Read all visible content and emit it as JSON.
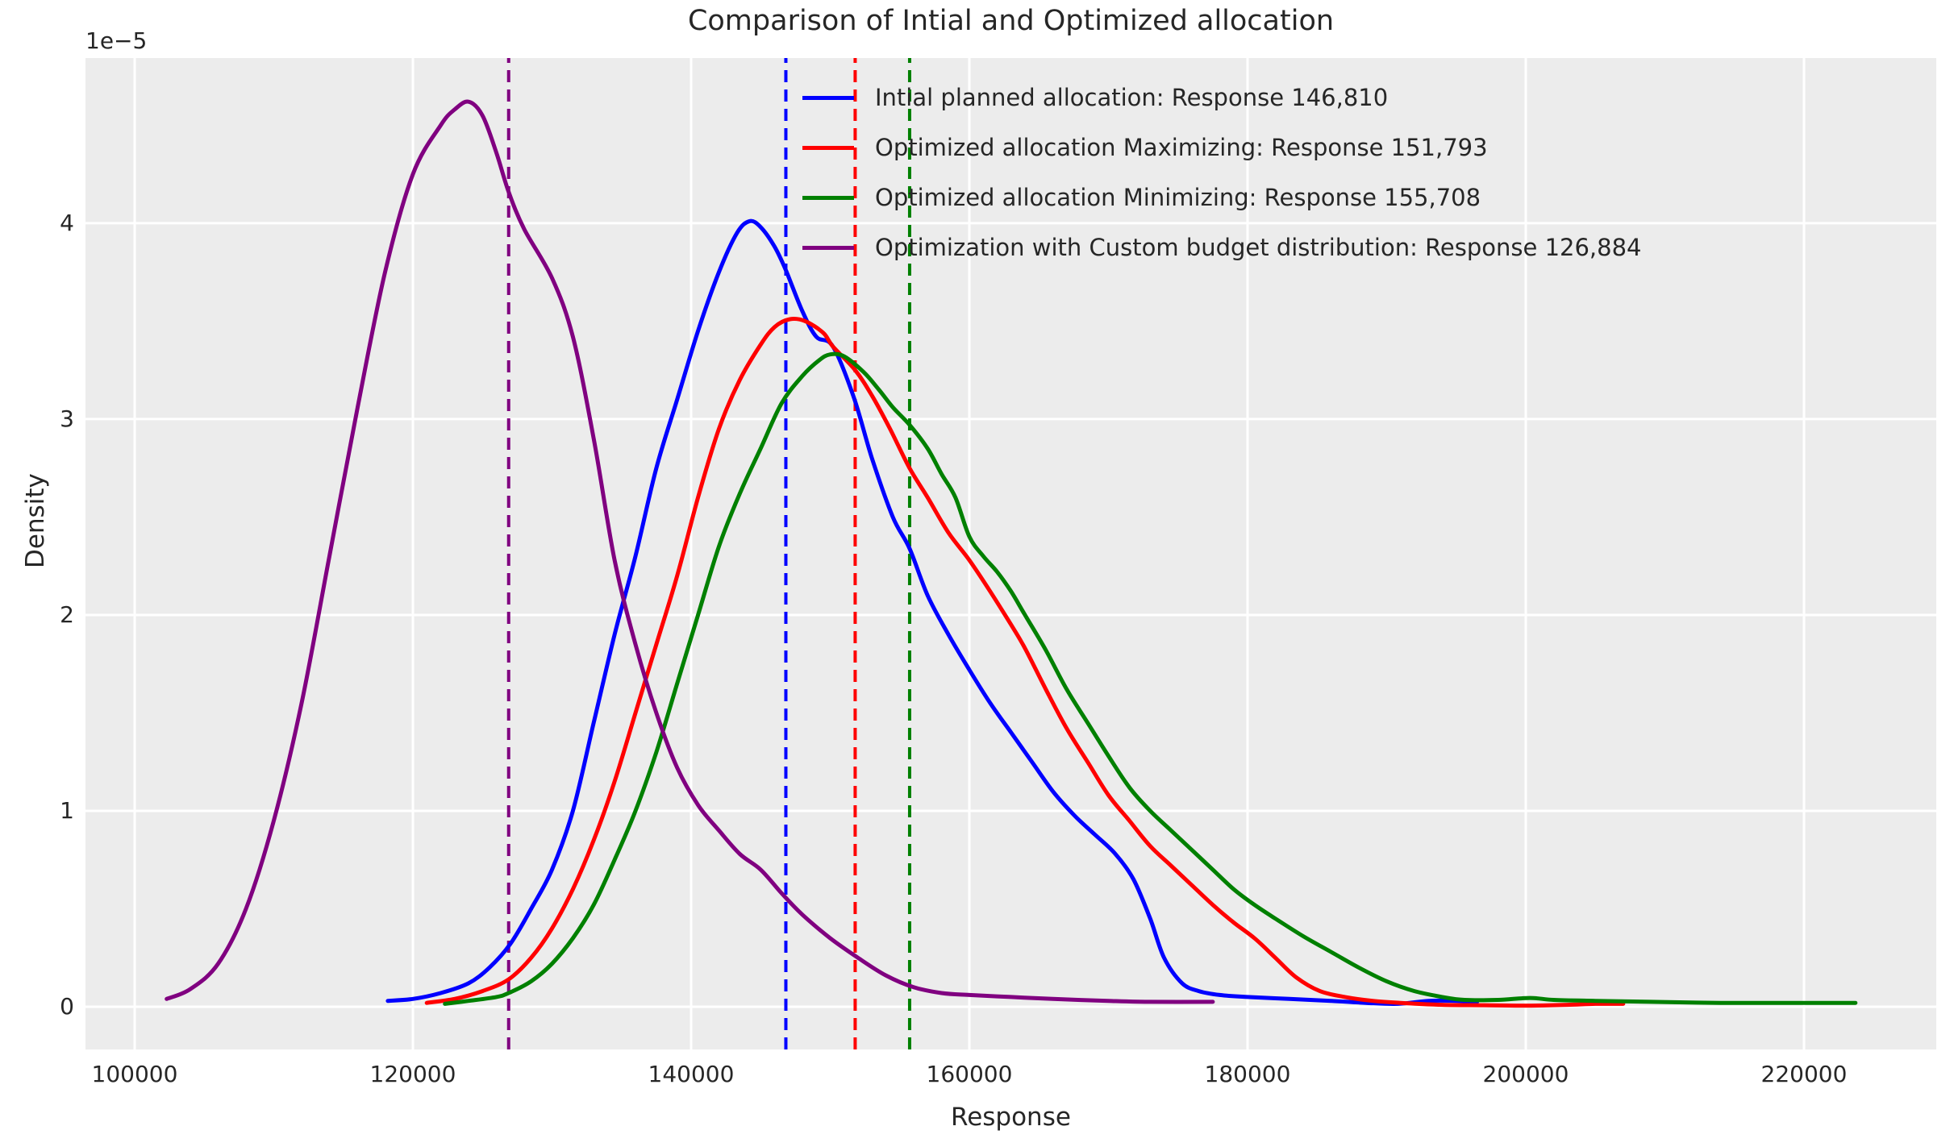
{
  "title": "Comparison of Intial and Optimized allocation",
  "axes": {
    "xlabel": "Response",
    "ylabel": "Density",
    "offset_label": "1e−5",
    "x_ticks": [
      100000,
      120000,
      140000,
      160000,
      180000,
      200000,
      220000
    ],
    "x_tick_labels": [
      "100000",
      "120000",
      "140000",
      "160000",
      "180000",
      "200000",
      "220000"
    ],
    "y_ticks": [
      0,
      1,
      2,
      3,
      4
    ],
    "y_tick_labels": [
      "0",
      "1",
      "2",
      "3",
      "4"
    ]
  },
  "colors": {
    "figure_bg": "#ffffff",
    "axes_bg": "#ececec",
    "grid": "#ffffff",
    "text": "#262626",
    "blue": "#0000ff",
    "red": "#ff0000",
    "green": "#008000",
    "purple": "#800080"
  },
  "chart_data": {
    "type": "line",
    "title": "Comparison of Intial and Optimized allocation",
    "xlabel": "Response",
    "ylabel": "Density",
    "y_unit": "1e-5",
    "xlim": [
      96464,
      229507
    ],
    "ylim": [
      -0.218,
      4.843
    ],
    "grid": true,
    "legend_position": "upper center-right",
    "series": [
      {
        "name": "initial-planned",
        "label": "Intial planned allocation: Response 146,810",
        "color": "#0000ff",
        "mean": 146810,
        "points": [
          [
            118200,
            0.03
          ],
          [
            120000,
            0.04
          ],
          [
            122000,
            0.07
          ],
          [
            124000,
            0.12
          ],
          [
            125500,
            0.2
          ],
          [
            127000,
            0.32
          ],
          [
            128500,
            0.5
          ],
          [
            130000,
            0.7
          ],
          [
            131500,
            1.0
          ],
          [
            133000,
            1.45
          ],
          [
            134500,
            1.9
          ],
          [
            136000,
            2.3
          ],
          [
            137500,
            2.75
          ],
          [
            139000,
            3.1
          ],
          [
            140500,
            3.45
          ],
          [
            142000,
            3.75
          ],
          [
            143300,
            3.95
          ],
          [
            144200,
            4.01
          ],
          [
            145000,
            3.98
          ],
          [
            146000,
            3.88
          ],
          [
            146810,
            3.76
          ],
          [
            148000,
            3.55
          ],
          [
            149000,
            3.42
          ],
          [
            150200,
            3.37
          ],
          [
            151700,
            3.11
          ],
          [
            153000,
            2.8
          ],
          [
            154500,
            2.5
          ],
          [
            155700,
            2.34
          ],
          [
            157000,
            2.1
          ],
          [
            158500,
            1.9
          ],
          [
            160000,
            1.72
          ],
          [
            161500,
            1.55
          ],
          [
            163000,
            1.4
          ],
          [
            164500,
            1.25
          ],
          [
            166000,
            1.1
          ],
          [
            167500,
            0.98
          ],
          [
            169000,
            0.88
          ],
          [
            170500,
            0.78
          ],
          [
            171800,
            0.65
          ],
          [
            173000,
            0.45
          ],
          [
            174000,
            0.25
          ],
          [
            175300,
            0.12
          ],
          [
            176500,
            0.08
          ],
          [
            178000,
            0.06
          ],
          [
            180000,
            0.05
          ],
          [
            183000,
            0.04
          ],
          [
            186000,
            0.03
          ],
          [
            188500,
            0.02
          ],
          [
            190800,
            0.015
          ],
          [
            193000,
            0.03
          ],
          [
            195000,
            0.03
          ],
          [
            196500,
            0.025
          ]
        ]
      },
      {
        "name": "optimized-maximizing",
        "label": "Optimized allocation Maximizing: Response 151,793",
        "color": "#ff0000",
        "mean": 151793,
        "points": [
          [
            121000,
            0.02
          ],
          [
            123000,
            0.04
          ],
          [
            125000,
            0.08
          ],
          [
            126884,
            0.14
          ],
          [
            128500,
            0.25
          ],
          [
            130000,
            0.4
          ],
          [
            131500,
            0.6
          ],
          [
            133000,
            0.85
          ],
          [
            134500,
            1.15
          ],
          [
            136000,
            1.5
          ],
          [
            137500,
            1.85
          ],
          [
            139000,
            2.2
          ],
          [
            140500,
            2.6
          ],
          [
            142000,
            2.95
          ],
          [
            143500,
            3.2
          ],
          [
            145000,
            3.38
          ],
          [
            146000,
            3.47
          ],
          [
            147100,
            3.51
          ],
          [
            148200,
            3.5
          ],
          [
            149500,
            3.44
          ],
          [
            150200,
            3.37
          ],
          [
            151793,
            3.25
          ],
          [
            153000,
            3.12
          ],
          [
            154300,
            2.95
          ],
          [
            155700,
            2.75
          ],
          [
            157000,
            2.6
          ],
          [
            158500,
            2.42
          ],
          [
            160000,
            2.28
          ],
          [
            161500,
            2.12
          ],
          [
            163000,
            1.95
          ],
          [
            164000,
            1.83
          ],
          [
            165500,
            1.62
          ],
          [
            167000,
            1.42
          ],
          [
            168500,
            1.25
          ],
          [
            170000,
            1.08
          ],
          [
            171500,
            0.95
          ],
          [
            173000,
            0.82
          ],
          [
            174500,
            0.72
          ],
          [
            176000,
            0.62
          ],
          [
            177500,
            0.52
          ],
          [
            179000,
            0.43
          ],
          [
            180500,
            0.35
          ],
          [
            182000,
            0.25
          ],
          [
            183500,
            0.15
          ],
          [
            185200,
            0.08
          ],
          [
            187000,
            0.05
          ],
          [
            189000,
            0.03
          ],
          [
            191000,
            0.02
          ],
          [
            194000,
            0.01
          ],
          [
            197000,
            0.008
          ],
          [
            200000,
            0.006
          ],
          [
            203000,
            0.01
          ],
          [
            205000,
            0.015
          ],
          [
            207000,
            0.015
          ]
        ]
      },
      {
        "name": "optimized-minimizing",
        "label": "Optimized allocation Minimizing: Response 155,708",
        "color": "#008000",
        "mean": 155708,
        "points": [
          [
            122300,
            0.015
          ],
          [
            124000,
            0.03
          ],
          [
            126000,
            0.05
          ],
          [
            126884,
            0.07
          ],
          [
            128500,
            0.13
          ],
          [
            130000,
            0.22
          ],
          [
            131500,
            0.35
          ],
          [
            133000,
            0.52
          ],
          [
            134500,
            0.75
          ],
          [
            136000,
            1.0
          ],
          [
            137500,
            1.3
          ],
          [
            139000,
            1.65
          ],
          [
            140500,
            2.0
          ],
          [
            142000,
            2.35
          ],
          [
            143500,
            2.62
          ],
          [
            145000,
            2.85
          ],
          [
            146500,
            3.08
          ],
          [
            148000,
            3.22
          ],
          [
            149200,
            3.3
          ],
          [
            150000,
            3.33
          ],
          [
            151000,
            3.32
          ],
          [
            152400,
            3.24
          ],
          [
            153500,
            3.15
          ],
          [
            154500,
            3.06
          ],
          [
            155708,
            2.97
          ],
          [
            157000,
            2.85
          ],
          [
            158000,
            2.72
          ],
          [
            159000,
            2.6
          ],
          [
            160000,
            2.4
          ],
          [
            161000,
            2.3
          ],
          [
            162000,
            2.22
          ],
          [
            163000,
            2.12
          ],
          [
            164000,
            2.0
          ],
          [
            165500,
            1.82
          ],
          [
            167000,
            1.62
          ],
          [
            168500,
            1.45
          ],
          [
            170000,
            1.28
          ],
          [
            171500,
            1.12
          ],
          [
            173000,
            1.0
          ],
          [
            174500,
            0.9
          ],
          [
            176000,
            0.8
          ],
          [
            177500,
            0.7
          ],
          [
            179000,
            0.6
          ],
          [
            180500,
            0.52
          ],
          [
            182000,
            0.45
          ],
          [
            184000,
            0.36
          ],
          [
            186000,
            0.28
          ],
          [
            188000,
            0.2
          ],
          [
            190000,
            0.13
          ],
          [
            192000,
            0.08
          ],
          [
            194000,
            0.05
          ],
          [
            195600,
            0.035
          ],
          [
            198000,
            0.035
          ],
          [
            200300,
            0.045
          ],
          [
            202000,
            0.035
          ],
          [
            205000,
            0.03
          ],
          [
            209000,
            0.025
          ],
          [
            214000,
            0.02
          ],
          [
            219000,
            0.02
          ],
          [
            223700,
            0.02
          ]
        ]
      },
      {
        "name": "custom-budget",
        "label": "Optimization with Custom budget distribution: Response 126,884",
        "color": "#800080",
        "mean": 126884,
        "points": [
          [
            102300,
            0.04
          ],
          [
            104000,
            0.09
          ],
          [
            106000,
            0.22
          ],
          [
            108000,
            0.5
          ],
          [
            110000,
            0.95
          ],
          [
            112000,
            1.55
          ],
          [
            114000,
            2.3
          ],
          [
            116000,
            3.05
          ],
          [
            118000,
            3.75
          ],
          [
            120000,
            4.25
          ],
          [
            122000,
            4.5
          ],
          [
            123000,
            4.58
          ],
          [
            124000,
            4.62
          ],
          [
            125000,
            4.55
          ],
          [
            126000,
            4.36
          ],
          [
            126884,
            4.16
          ],
          [
            128000,
            3.97
          ],
          [
            130000,
            3.72
          ],
          [
            131500,
            3.42
          ],
          [
            133000,
            2.9
          ],
          [
            134500,
            2.28
          ],
          [
            136000,
            1.85
          ],
          [
            137500,
            1.5
          ],
          [
            139000,
            1.22
          ],
          [
            140500,
            1.03
          ],
          [
            142000,
            0.9
          ],
          [
            143500,
            0.78
          ],
          [
            145000,
            0.7
          ],
          [
            146500,
            0.58
          ],
          [
            148000,
            0.47
          ],
          [
            150000,
            0.35
          ],
          [
            152000,
            0.25
          ],
          [
            154000,
            0.16
          ],
          [
            156000,
            0.1
          ],
          [
            158000,
            0.07
          ],
          [
            160000,
            0.06
          ],
          [
            163000,
            0.05
          ],
          [
            166000,
            0.04
          ],
          [
            170000,
            0.03
          ],
          [
            173000,
            0.025
          ],
          [
            177500,
            0.025
          ]
        ]
      }
    ]
  }
}
